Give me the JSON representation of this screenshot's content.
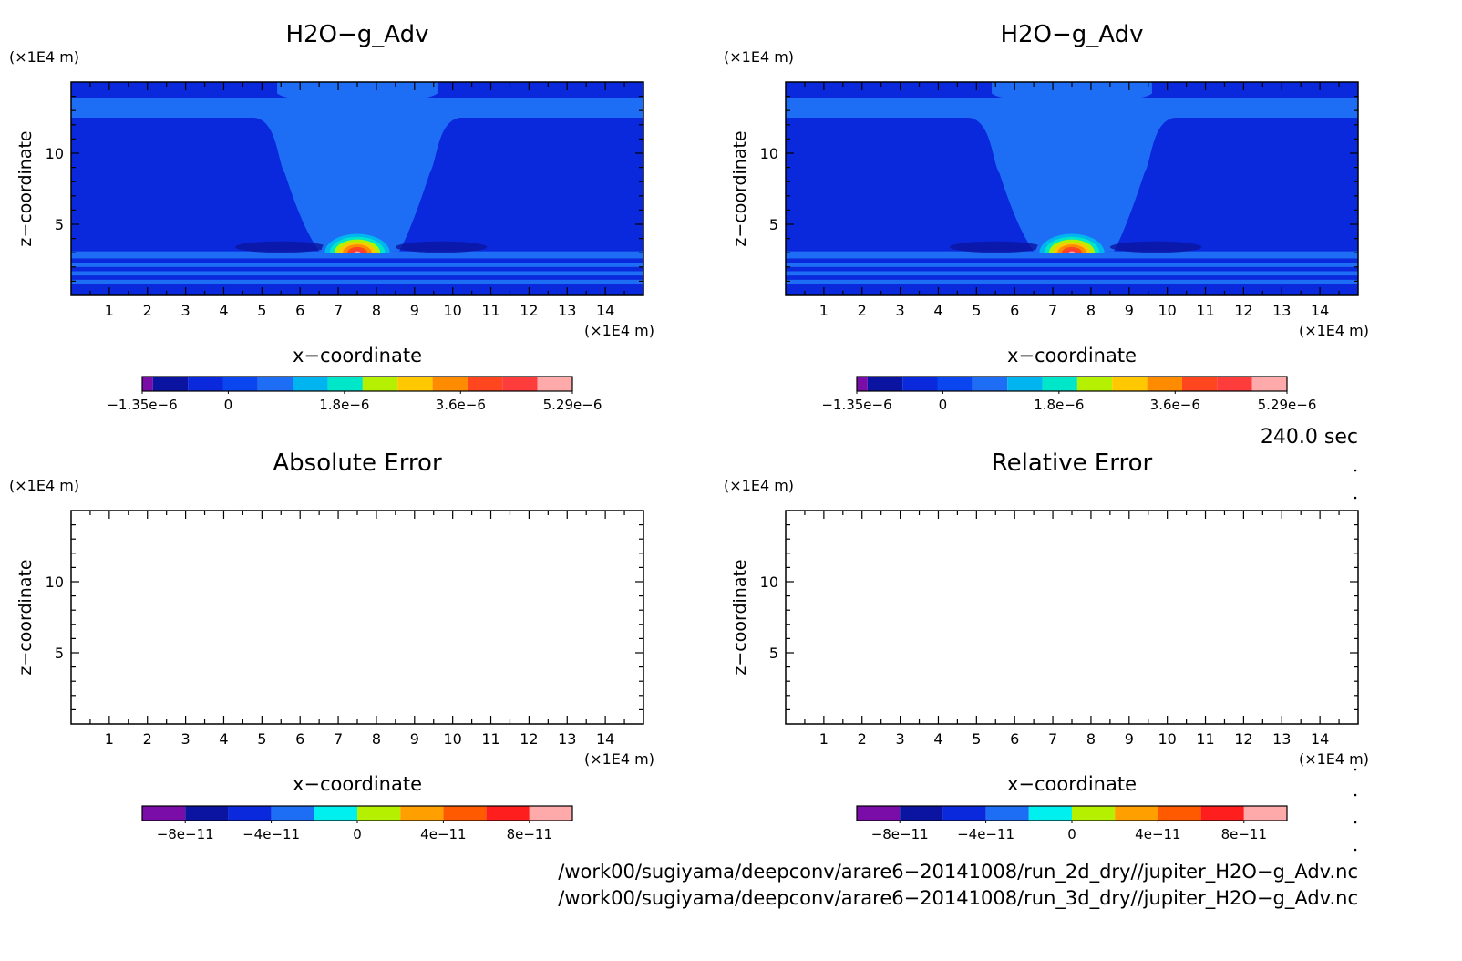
{
  "chart_data": [
    {
      "type": "heatmap",
      "title": "H2O−g_Adv",
      "xlabel": "x−coordinate",
      "ylabel": "z−coordinate",
      "x_unit": "(×1E4 m)",
      "y_unit": "(×1E4 m)",
      "xlim": [
        0,
        15
      ],
      "ylim": [
        0,
        15
      ],
      "x_ticks": [
        "1",
        "2",
        "3",
        "4",
        "5",
        "6",
        "7",
        "8",
        "9",
        "10",
        "11",
        "12",
        "13",
        "14"
      ],
      "y_ticks": [
        "5",
        "10"
      ],
      "colorbar": {
        "min": -1.35e-06,
        "max": 5.29e-06,
        "labels": [
          "−1.35e−6",
          "0",
          "1.8e−6",
          "3.6e−6",
          "5.29e−6"
        ],
        "colors": [
          "#7a0da8",
          "#0a14a0",
          "#0a28dc",
          "#0a46f0",
          "#1e6ef5",
          "#00b4f0",
          "#00e6c8",
          "#b4f000",
          "#ffc800",
          "#ff8c00",
          "#ff461e",
          "#ff3c3c",
          "#ffaaaa"
        ]
      }
    },
    {
      "type": "heatmap",
      "title": "H2O−g_Adv",
      "xlabel": "x−coordinate",
      "ylabel": "z−coordinate",
      "x_unit": "(×1E4 m)",
      "y_unit": "(×1E4 m)",
      "xlim": [
        0,
        15
      ],
      "ylim": [
        0,
        15
      ],
      "x_ticks": [
        "1",
        "2",
        "3",
        "4",
        "5",
        "6",
        "7",
        "8",
        "9",
        "10",
        "11",
        "12",
        "13",
        "14"
      ],
      "y_ticks": [
        "5",
        "10"
      ],
      "colorbar": {
        "min": -1.35e-06,
        "max": 5.29e-06,
        "labels": [
          "−1.35e−6",
          "0",
          "1.8e−6",
          "3.6e−6",
          "5.29e−6"
        ],
        "colors": [
          "#7a0da8",
          "#0a14a0",
          "#0a28dc",
          "#0a46f0",
          "#1e6ef5",
          "#00b4f0",
          "#00e6c8",
          "#b4f000",
          "#ffc800",
          "#ff8c00",
          "#ff461e",
          "#ff3c3c",
          "#ffaaaa"
        ]
      }
    },
    {
      "type": "heatmap",
      "title": "Absolute Error",
      "xlabel": "x−coordinate",
      "ylabel": "z−coordinate",
      "x_unit": "(×1E4 m)",
      "y_unit": "(×1E4 m)",
      "xlim": [
        0,
        15
      ],
      "ylim": [
        0,
        15
      ],
      "x_ticks": [
        "1",
        "2",
        "3",
        "4",
        "5",
        "6",
        "7",
        "8",
        "9",
        "10",
        "11",
        "12",
        "13",
        "14"
      ],
      "y_ticks": [
        "5",
        "10"
      ],
      "colorbar": {
        "min": -1e-10,
        "max": 1e-10,
        "labels": [
          "−8e−11",
          "−4e−11",
          "0",
          "4e−11",
          "8e−11"
        ],
        "colors": [
          "#7a0da8",
          "#0a14a0",
          "#0a28dc",
          "#1e6ef5",
          "#00f0f0",
          "#b4f000",
          "#ffa000",
          "#ff5a00",
          "#ff1e1e",
          "#ffaaaa"
        ]
      }
    },
    {
      "type": "heatmap",
      "title": "Relative Error",
      "xlabel": "x−coordinate",
      "ylabel": "z−coordinate",
      "x_unit": "(×1E4 m)",
      "y_unit": "(×1E4 m)",
      "xlim": [
        0,
        15
      ],
      "ylim": [
        0,
        15
      ],
      "x_ticks": [
        "1",
        "2",
        "3",
        "4",
        "5",
        "6",
        "7",
        "8",
        "9",
        "10",
        "11",
        "12",
        "13",
        "14"
      ],
      "y_ticks": [
        "5",
        "10"
      ],
      "colorbar": {
        "min": -1e-10,
        "max": 1e-10,
        "labels": [
          "−8e−11",
          "−4e−11",
          "0",
          "4e−11",
          "8e−11"
        ],
        "colors": [
          "#7a0da8",
          "#0a14a0",
          "#0a28dc",
          "#1e6ef5",
          "#00f0f0",
          "#b4f000",
          "#ffa000",
          "#ff5a00",
          "#ff1e1e",
          "#ffaaaa"
        ]
      }
    }
  ],
  "time_label": "240.0 sec",
  "file_paths": [
    "/work00/sugiyama/deepconv/arare6−20141008/run_2d_dry//jupiter_H2O−g_Adv.nc",
    "/work00/sugiyama/deepconv/arare6−20141008/run_3d_dry//jupiter_H2O−g_Adv.nc"
  ]
}
